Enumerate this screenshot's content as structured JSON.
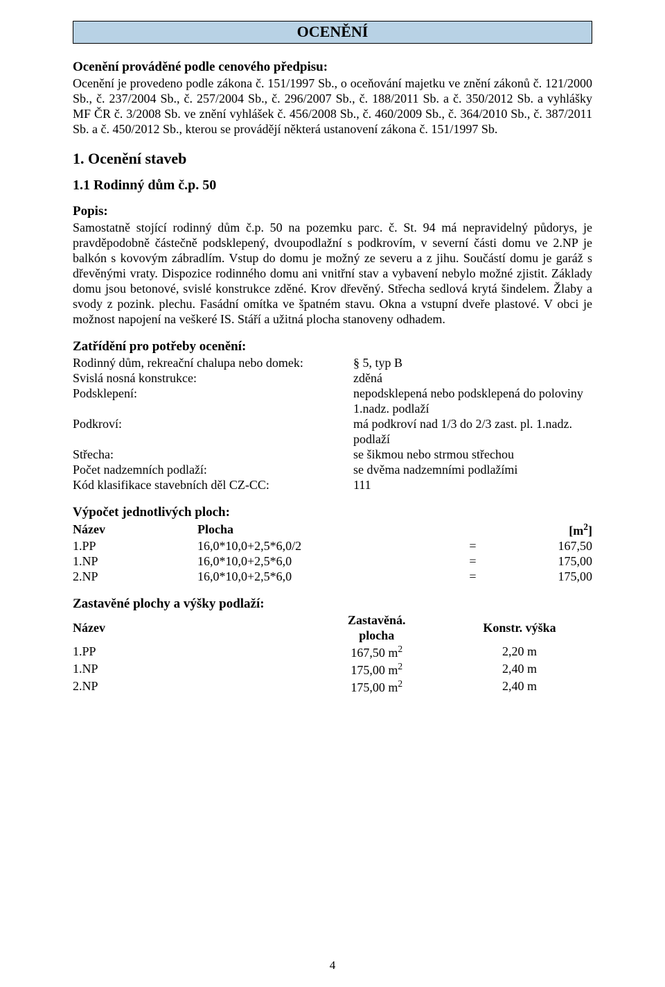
{
  "colors": {
    "band_bg": "#B8D2E5",
    "band_border": "#000000",
    "text": "#000000",
    "page_bg": "#ffffff"
  },
  "typography": {
    "font_family": "Times New Roman",
    "body_pt": 14,
    "title_pt": 17,
    "h1_pt": 17,
    "h2_pt": 15,
    "h3_pt": 14
  },
  "title": "OCENĚNÍ",
  "predpis_heading": "Ocenění prováděné podle cenového předpisu:",
  "predpis_text": "Ocenění je provedeno podle zákona č. 151/1997 Sb., o oceňování majetku ve znění zákonů č. 121/2000 Sb., č. 237/2004 Sb., č. 257/2004 Sb., č. 296/2007 Sb., č. 188/2011 Sb. a č. 350/2012 Sb. a vyhlášky MF ČR č. 3/2008 Sb. ve znění vyhlášek č. 456/2008 Sb., č. 460/2009 Sb., č. 364/2010 Sb., č. 387/2011 Sb. a č. 450/2012 Sb., kterou se provádějí některá ustanovení zákona č. 151/1997 Sb.",
  "h1": "1. Ocenění staveb",
  "h2": "1.1 Rodinný dům č.p. 50",
  "popis_label": "Popis:",
  "popis_text": "Samostatně stojící rodinný dům č.p. 50 na pozemku parc. č. St. 94 má nepravidelný půdorys, je pravděpodobně částečně podsklepený, dvoupodlažní s podkrovím, v severní části domu ve 2.NP je balkón s kovovým zábradlím. Vstup do domu je možný ze severu a z jihu. Součástí domu je garáž s dřevěnými vraty. Dispozice rodinného domu ani vnitřní stav a vybavení nebylo možné zjistit. Základy domu jsou betonové, svislé konstrukce zděné. Krov dřevěný. Střecha sedlová krytá šindelem. Žlaby a svody z pozink. plechu. Fasádní omítka ve špatném stavu. Okna a vstupní dveře plastové. V obci je možnost napojení na veškeré IS. Stáří a užitná plocha stanoveny odhadem.",
  "zatrideni_heading": "Zatřídění pro potřeby ocenění:",
  "zatrideni_rows": [
    {
      "k": "Rodinný dům, rekreační chalupa nebo domek:",
      "v": "§ 5, typ B"
    },
    {
      "k": "Svislá nosná konstrukce:",
      "v": "zděná"
    },
    {
      "k": "Podsklepení:",
      "v": "nepodsklepená nebo podsklepená do poloviny 1.nadz. podlaží"
    },
    {
      "k": "Podkroví:",
      "v": "má podkroví nad 1/3 do 2/3 zast. pl. 1.nadz. podlaží"
    },
    {
      "k": "Střecha:",
      "v": "se šikmou nebo strmou střechou"
    },
    {
      "k": "Počet nadzemních podlaží:",
      "v": "se dvěma nadzemními podlažími"
    },
    {
      "k": "Kód klasifikace stavebních děl CZ-CC:",
      "v": "111"
    }
  ],
  "vypocet_heading": "Výpočet jednotlivých ploch:",
  "vypocet_headers": {
    "name": "Název",
    "area": "Plocha",
    "unit": "[m²]"
  },
  "vypocet_rows": [
    {
      "name": "1.PP",
      "expr": "16,0*10,0+2,5*6,0/2",
      "eq": "=",
      "val": "167,50"
    },
    {
      "name": "1.NP",
      "expr": "16,0*10,0+2,5*6,0",
      "eq": "=",
      "val": "175,00"
    },
    {
      "name": "2.NP",
      "expr": "16,0*10,0+2,5*6,0",
      "eq": "=",
      "val": "175,00"
    }
  ],
  "zastavene_heading": "Zastavěné plochy a výšky podlaží:",
  "zastavene_headers": {
    "name": "Název",
    "area": "Zastavěná. plocha",
    "height": "Konstr. výška"
  },
  "zastavene_rows": [
    {
      "name": "1.PP",
      "area": "167,50 m²",
      "height": "2,20 m"
    },
    {
      "name": "1.NP",
      "area": "175,00 m²",
      "height": "2,40 m"
    },
    {
      "name": "2.NP",
      "area": "175,00 m²",
      "height": "2,40 m"
    }
  ],
  "page_number": "4"
}
